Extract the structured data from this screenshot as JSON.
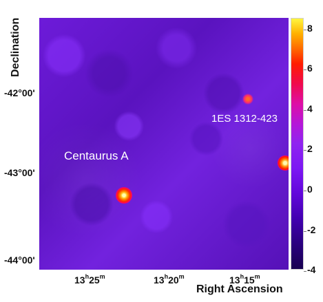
{
  "axes": {
    "y_title": "Declination",
    "x_title": "Right Ascension",
    "y_ticks": [
      {
        "deg": "-42",
        "min": "00'"
      },
      {
        "deg": "-43",
        "min": "00'"
      },
      {
        "deg": "-44",
        "min": "00'"
      }
    ],
    "x_ticks": [
      {
        "h": "13",
        "m": "25"
      },
      {
        "h": "13",
        "m": "20"
      },
      {
        "h": "13",
        "m": "15"
      }
    ]
  },
  "labels": {
    "source_1": "Centaurus A",
    "source_2": "1ES 1312-423"
  },
  "colorbar": {
    "ticks": [
      "8",
      "6",
      "4",
      "2",
      "0",
      "-2",
      "-4"
    ]
  },
  "colors": {
    "background": "#ffffff",
    "label_text": "#ffffff",
    "axis_text": "#111111"
  }
}
